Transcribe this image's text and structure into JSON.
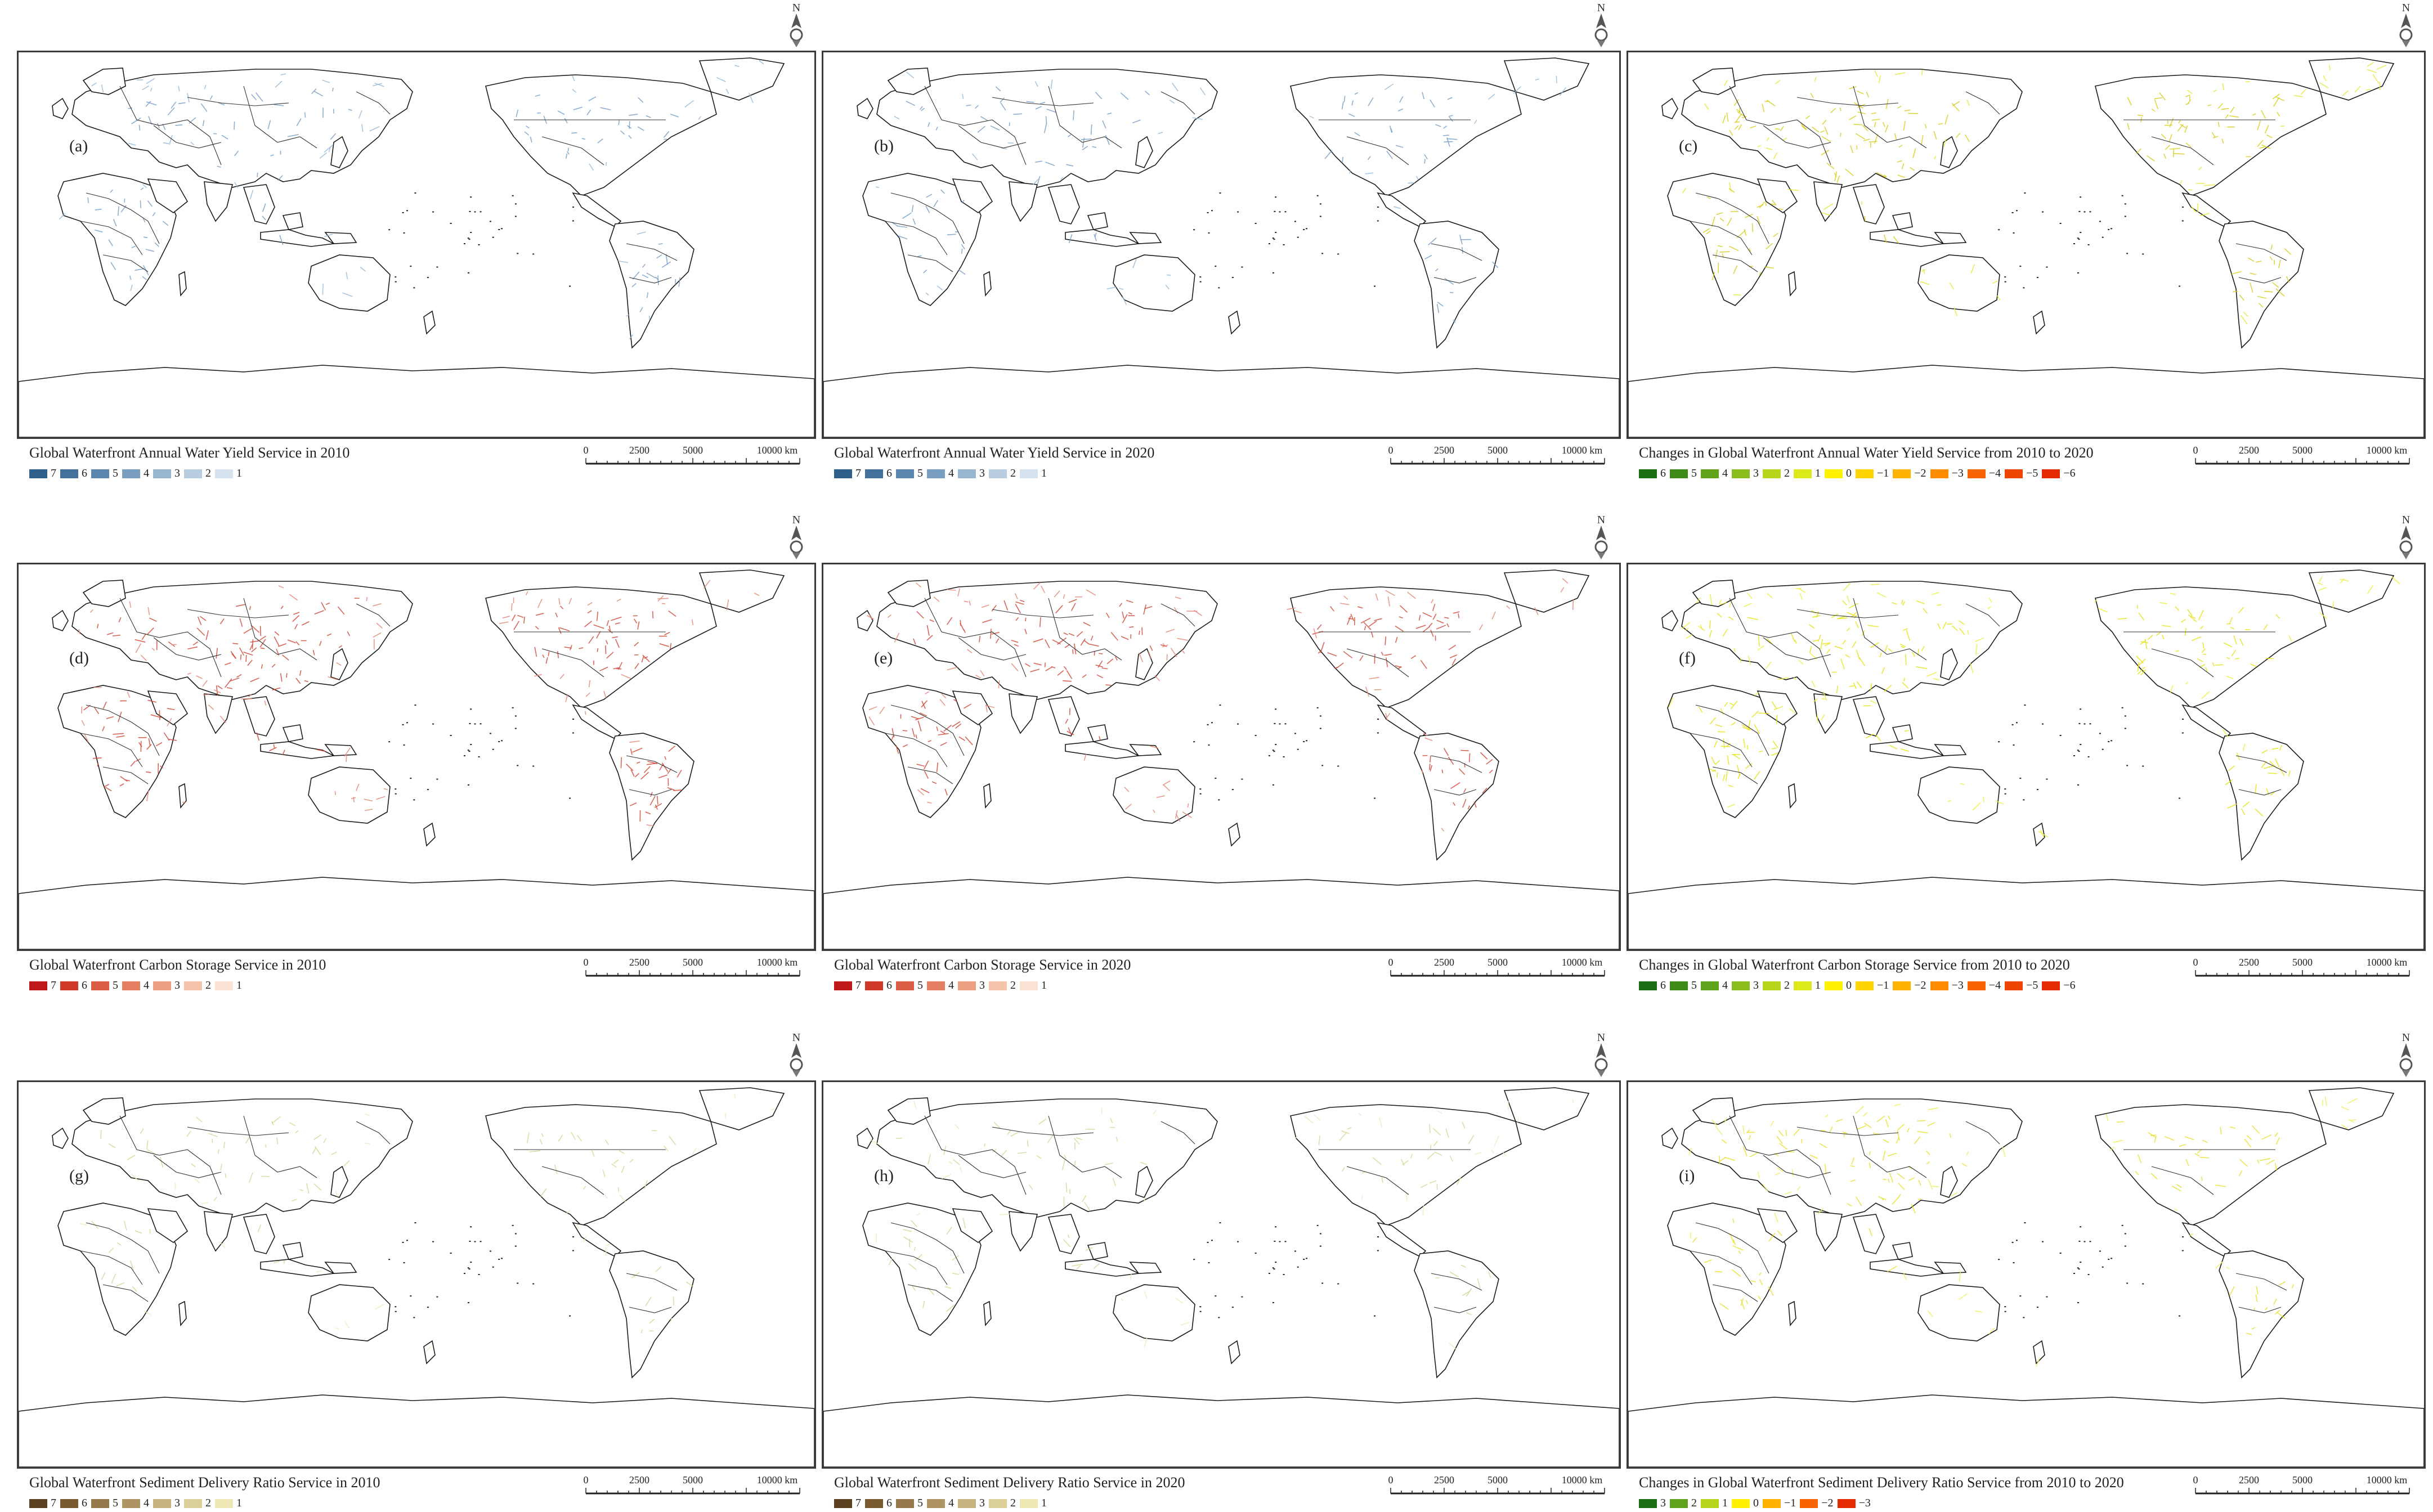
{
  "panels": [
    {
      "label": "(a)",
      "title": "Global Waterfront Annual Water Yield Service in 2010",
      "overlay": "#9bbcd8",
      "hotspot": "#7aa0c8",
      "density": 0.35,
      "legend": [
        {
          "value": "7",
          "color": "#2e5f8a"
        },
        {
          "value": "6",
          "color": "#43719c"
        },
        {
          "value": "5",
          "color": "#5b86ad"
        },
        {
          "value": "4",
          "color": "#7a9ec0"
        },
        {
          "value": "3",
          "color": "#99b6d0"
        },
        {
          "value": "2",
          "color": "#b8cde0"
        },
        {
          "value": "1",
          "color": "#d6e3ee"
        }
      ]
    },
    {
      "label": "(b)",
      "title": "Global Waterfront Annual Water Yield Service in 2020",
      "overlay": "#9bbcd8",
      "hotspot": "#7aa0c8",
      "density": 0.35,
      "legend": [
        {
          "value": "7",
          "color": "#2e5f8a"
        },
        {
          "value": "6",
          "color": "#43719c"
        },
        {
          "value": "5",
          "color": "#5b86ad"
        },
        {
          "value": "4",
          "color": "#7a9ec0"
        },
        {
          "value": "3",
          "color": "#99b6d0"
        },
        {
          "value": "2",
          "color": "#b8cde0"
        },
        {
          "value": "1",
          "color": "#d6e3ee"
        }
      ]
    },
    {
      "label": "(c)",
      "title": "Changes in Global Waterfront Annual Water Yield Service from 2010 to 2020",
      "overlay": "#e6ea3a",
      "hotspot": "#d8d020",
      "density": 0.55,
      "legend": [
        {
          "value": "6",
          "color": "#1b6e12"
        },
        {
          "value": "5",
          "color": "#3d8a16"
        },
        {
          "value": "4",
          "color": "#62a31c"
        },
        {
          "value": "3",
          "color": "#8cbd1f"
        },
        {
          "value": "2",
          "color": "#b6d61e"
        },
        {
          "value": "1",
          "color": "#dcea1c"
        },
        {
          "value": "0",
          "color": "#fff200"
        },
        {
          "value": "−1",
          "color": "#ffd400"
        },
        {
          "value": "−2",
          "color": "#ffb200"
        },
        {
          "value": "−3",
          "color": "#ff8c00"
        },
        {
          "value": "−4",
          "color": "#f86400"
        },
        {
          "value": "−5",
          "color": "#ee4600"
        },
        {
          "value": "−6",
          "color": "#e42a00"
        }
      ]
    },
    {
      "label": "(d)",
      "title": "Global Waterfront Carbon Storage Service in 2010",
      "overlay": "#e58a7a",
      "hotspot": "#d24a3a",
      "density": 0.6,
      "legend": [
        {
          "value": "7",
          "color": "#c01818"
        },
        {
          "value": "6",
          "color": "#d03a2a"
        },
        {
          "value": "5",
          "color": "#dc5d45"
        },
        {
          "value": "4",
          "color": "#e47e62"
        },
        {
          "value": "3",
          "color": "#eca183"
        },
        {
          "value": "2",
          "color": "#f3c3aa"
        },
        {
          "value": "1",
          "color": "#fae3d4"
        }
      ]
    },
    {
      "label": "(e)",
      "title": "Global Waterfront Carbon Storage Service in 2020",
      "overlay": "#e58a7a",
      "hotspot": "#d24a3a",
      "density": 0.6,
      "legend": [
        {
          "value": "7",
          "color": "#c01818"
        },
        {
          "value": "6",
          "color": "#d03a2a"
        },
        {
          "value": "5",
          "color": "#dc5d45"
        },
        {
          "value": "4",
          "color": "#e47e62"
        },
        {
          "value": "3",
          "color": "#eca183"
        },
        {
          "value": "2",
          "color": "#f3c3aa"
        },
        {
          "value": "1",
          "color": "#fae3d4"
        }
      ]
    },
    {
      "label": "(f)",
      "title": "Changes in Global Waterfront Carbon Storage Service from 2010 to 2020",
      "overlay": "#eef040",
      "hotspot": "#e6e418",
      "density": 0.6,
      "legend": [
        {
          "value": "6",
          "color": "#1b6e12"
        },
        {
          "value": "5",
          "color": "#3d8a16"
        },
        {
          "value": "4",
          "color": "#62a31c"
        },
        {
          "value": "3",
          "color": "#8cbd1f"
        },
        {
          "value": "2",
          "color": "#b6d61e"
        },
        {
          "value": "1",
          "color": "#dcea1c"
        },
        {
          "value": "0",
          "color": "#fff200"
        },
        {
          "value": "−1",
          "color": "#ffd400"
        },
        {
          "value": "−2",
          "color": "#ffb200"
        },
        {
          "value": "−3",
          "color": "#ff8c00"
        },
        {
          "value": "−4",
          "color": "#f86400"
        },
        {
          "value": "−5",
          "color": "#ee4600"
        },
        {
          "value": "−6",
          "color": "#e42a00"
        }
      ]
    },
    {
      "label": "(g)",
      "title": "Global Waterfront Sediment Delivery Ratio Service in 2010",
      "overlay": "#ecebc0",
      "hotspot": "#d9d79a",
      "density": 0.25,
      "legend": [
        {
          "value": "7",
          "color": "#5a4020"
        },
        {
          "value": "6",
          "color": "#7a5a30"
        },
        {
          "value": "5",
          "color": "#96784a"
        },
        {
          "value": "4",
          "color": "#ad9462"
        },
        {
          "value": "3",
          "color": "#c6b57e"
        },
        {
          "value": "2",
          "color": "#dcd09a"
        },
        {
          "value": "1",
          "color": "#eee8b6"
        }
      ]
    },
    {
      "label": "(h)",
      "title": "Global Waterfront Sediment Delivery Ratio Service in 2020",
      "overlay": "#ecebc0",
      "hotspot": "#d9d79a",
      "density": 0.25,
      "legend": [
        {
          "value": "7",
          "color": "#5a4020"
        },
        {
          "value": "6",
          "color": "#7a5a30"
        },
        {
          "value": "5",
          "color": "#96784a"
        },
        {
          "value": "4",
          "color": "#ad9462"
        },
        {
          "value": "3",
          "color": "#c6b57e"
        },
        {
          "value": "2",
          "color": "#dcd09a"
        },
        {
          "value": "1",
          "color": "#eee8b6"
        }
      ]
    },
    {
      "label": "(i)",
      "title": "Changes in Global Waterfront Sediment Delivery Ratio Service from 2010 to 2020",
      "overlay": "#f0ee60",
      "hotspot": "#e8e230",
      "density": 0.4,
      "legend": [
        {
          "value": "3",
          "color": "#1b6e12"
        },
        {
          "value": "2",
          "color": "#62a31c"
        },
        {
          "value": "1",
          "color": "#b6d61e"
        },
        {
          "value": "0",
          "color": "#fff200"
        },
        {
          "value": "−1",
          "color": "#ffb200"
        },
        {
          "value": "−2",
          "color": "#f86400"
        },
        {
          "value": "−3",
          "color": "#e42a00"
        }
      ]
    }
  ],
  "scale": {
    "ticks": [
      "0",
      "2500",
      "5000",
      "10000 km"
    ],
    "values": [
      0,
      2500,
      5000,
      10000
    ]
  },
  "north_letter": "N",
  "north_icon": "north-arrow-icon"
}
